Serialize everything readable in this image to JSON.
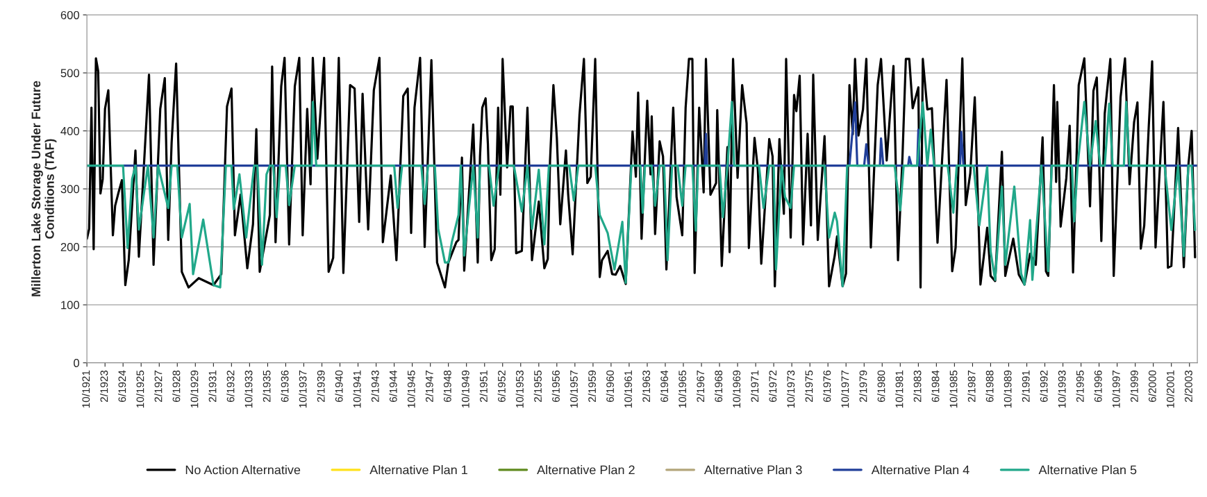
{
  "chart_data": {
    "type": "line",
    "ylabel": "Millerton Lake Storage Under Future\nConditions (TAF)",
    "ylim": [
      0,
      600
    ],
    "yticks": [
      0,
      100,
      200,
      300,
      400,
      500,
      600
    ],
    "grid": "y",
    "legend": "bottom",
    "line_style": "solid",
    "marker": "none",
    "xlim": [
      "1921-10",
      "2003-09"
    ],
    "xticks": [
      {
        "value": "1921-10",
        "label": "10/1921"
      },
      {
        "value": "1923-02",
        "label": "2/1923"
      },
      {
        "value": "1924-06",
        "label": "6/1924"
      },
      {
        "value": "1925-10",
        "label": "10/1925"
      },
      {
        "value": "1927-02",
        "label": "2/1927"
      },
      {
        "value": "1928-06",
        "label": "6/1928"
      },
      {
        "value": "1929-10",
        "label": "10/1929"
      },
      {
        "value": "1931-02",
        "label": "2/1931"
      },
      {
        "value": "1932-06",
        "label": "6/1932"
      },
      {
        "value": "1933-10",
        "label": "10/1933"
      },
      {
        "value": "1935-02",
        "label": "2/1935"
      },
      {
        "value": "1936-06",
        "label": "6/1936"
      },
      {
        "value": "1937-10",
        "label": "10/1937"
      },
      {
        "value": "1939-02",
        "label": "2/1939"
      },
      {
        "value": "1940-06",
        "label": "6/1940"
      },
      {
        "value": "1941-10",
        "label": "10/1941"
      },
      {
        "value": "1943-02",
        "label": "2/1943"
      },
      {
        "value": "1944-06",
        "label": "6/1944"
      },
      {
        "value": "1945-10",
        "label": "10/1945"
      },
      {
        "value": "1947-02",
        "label": "2/1947"
      },
      {
        "value": "1948-06",
        "label": "6/1948"
      },
      {
        "value": "1949-10",
        "label": "10/1949"
      },
      {
        "value": "1951-02",
        "label": "2/1951"
      },
      {
        "value": "1952-06",
        "label": "6/1952"
      },
      {
        "value": "1953-10",
        "label": "10/1953"
      },
      {
        "value": "1955-02",
        "label": "2/1955"
      },
      {
        "value": "1956-06",
        "label": "6/1956"
      },
      {
        "value": "1957-10",
        "label": "10/1957"
      },
      {
        "value": "1959-02",
        "label": "2/1959"
      },
      {
        "value": "1960-06",
        "label": "6/1960"
      },
      {
        "value": "1961-10",
        "label": "10/1961"
      },
      {
        "value": "1963-02",
        "label": "2/1963"
      },
      {
        "value": "1964-06",
        "label": "6/1964"
      },
      {
        "value": "1965-10",
        "label": "10/1965"
      },
      {
        "value": "1967-02",
        "label": "2/1967"
      },
      {
        "value": "1968-06",
        "label": "6/1968"
      },
      {
        "value": "1969-10",
        "label": "10/1969"
      },
      {
        "value": "1971-02",
        "label": "2/1971"
      },
      {
        "value": "1972-06",
        "label": "6/1972"
      },
      {
        "value": "1973-10",
        "label": "10/1973"
      },
      {
        "value": "1975-02",
        "label": "2/1975"
      },
      {
        "value": "1976-06",
        "label": "6/1976"
      },
      {
        "value": "1977-10",
        "label": "10/1977"
      },
      {
        "value": "1979-02",
        "label": "2/1979"
      },
      {
        "value": "1980-06",
        "label": "6/1980"
      },
      {
        "value": "1981-10",
        "label": "10/1981"
      },
      {
        "value": "1983-02",
        "label": "2/1983"
      },
      {
        "value": "1984-06",
        "label": "6/1984"
      },
      {
        "value": "1985-10",
        "label": "10/1985"
      },
      {
        "value": "1987-02",
        "label": "2/1987"
      },
      {
        "value": "1988-06",
        "label": "6/1988"
      },
      {
        "value": "1989-10",
        "label": "10/1989"
      },
      {
        "value": "1991-02",
        "label": "2/1991"
      },
      {
        "value": "1992-06",
        "label": "6/1992"
      },
      {
        "value": "1993-10",
        "label": "10/1993"
      },
      {
        "value": "1995-02",
        "label": "2/1995"
      },
      {
        "value": "1996-06",
        "label": "6/1996"
      },
      {
        "value": "1997-10",
        "label": "10/1997"
      },
      {
        "value": "1999-02",
        "label": "2/1999"
      },
      {
        "value": "2000-06",
        "label": "6/2000"
      },
      {
        "value": "2001-10",
        "label": "10/2001"
      },
      {
        "value": "2003-02",
        "label": "2/2003"
      }
    ],
    "series": [
      {
        "name": "No Action Alternative",
        "color": "#000000",
        "x": [
          "1921-10",
          "1921-12",
          "1922-02",
          "1922-04",
          "1922-06",
          "1922-08",
          "1922-10",
          "1922-12",
          "1923-02",
          "1923-05",
          "1923-09",
          "1923-11",
          "1924-02",
          "1924-05",
          "1924-08",
          "1924-11",
          "1925-05",
          "1925-08",
          "1926-05",
          "1926-09",
          "1927-03",
          "1927-07",
          "1927-10",
          "1928-01",
          "1928-05",
          "1928-10",
          "1929-04",
          "1930-01",
          "1931-02",
          "1931-09",
          "1932-02",
          "1932-06",
          "1932-09",
          "1933-02",
          "1933-08",
          "1934-01",
          "1934-04",
          "1934-07",
          "1935-04",
          "1935-06",
          "1935-09",
          "1936-02",
          "1936-05",
          "1936-09",
          "1937-02",
          "1937-06",
          "1937-09",
          "1938-01",
          "1938-04",
          "1938-06",
          "1938-10",
          "1939-04",
          "1939-08",
          "1939-12",
          "1940-05",
          "1940-09",
          "1941-03",
          "1941-07",
          "1941-11",
          "1942-02",
          "1942-07",
          "1942-12",
          "1943-05",
          "1943-08",
          "1944-03",
          "1944-08",
          "1945-02",
          "1945-06",
          "1945-09",
          "1945-12",
          "1946-05",
          "1946-09",
          "1947-03",
          "1947-08",
          "1948-03",
          "1948-06",
          "1949-01",
          "1949-03",
          "1949-06",
          "1949-08",
          "1950-04",
          "1950-08",
          "1950-10",
          "1950-12",
          "1951-03",
          "1951-05",
          "1951-08",
          "1951-11",
          "1952-02",
          "1952-04",
          "1952-06",
          "1952-10",
          "1953-01",
          "1953-03",
          "1953-06",
          "1953-11",
          "1954-04",
          "1954-08",
          "1955-02",
          "1955-07",
          "1955-10",
          "1955-12",
          "1956-03",
          "1956-06",
          "1956-09",
          "1957-02",
          "1957-04",
          "1957-08",
          "1958-02",
          "1958-06",
          "1958-09",
          "1958-12",
          "1959-04",
          "1959-08",
          "1959-10",
          "1960-03",
          "1960-07",
          "1960-10",
          "1961-02",
          "1961-07",
          "1962-01",
          "1962-04",
          "1962-06",
          "1962-09",
          "1963-02",
          "1963-05",
          "1963-06",
          "1963-09",
          "1964-01",
          "1964-04",
          "1964-07",
          "1965-01",
          "1965-04",
          "1965-09",
          "1965-12",
          "1966-03",
          "1966-06",
          "1966-08",
          "1966-12",
          "1967-04",
          "1967-06",
          "1967-10",
          "1968-03",
          "1968-04",
          "1968-08",
          "1969-01",
          "1969-03",
          "1969-06",
          "1969-10",
          "1970-02",
          "1970-06",
          "1970-08",
          "1971-01",
          "1971-04",
          "1971-07",
          "1972-02",
          "1972-05",
          "1972-07",
          "1972-11",
          "1973-03",
          "1973-05",
          "1973-09",
          "1973-12",
          "1974-02",
          "1974-05",
          "1974-08",
          "1974-12",
          "1975-03",
          "1975-05",
          "1975-09",
          "1976-03",
          "1976-07",
          "1976-12",
          "1977-02",
          "1977-07",
          "1977-10",
          "1978-01",
          "1978-04",
          "1978-06",
          "1978-09",
          "1979-01",
          "1979-04",
          "1979-08",
          "1980-02",
          "1980-05",
          "1980-10",
          "1981-04",
          "1981-08",
          "1981-12",
          "1982-03",
          "1982-06",
          "1982-09",
          "1983-02",
          "1983-04",
          "1983-06",
          "1983-10",
          "1984-02",
          "1984-07",
          "1985-03",
          "1985-08",
          "1985-11",
          "1986-05",
          "1986-08",
          "1986-12",
          "1987-04",
          "1987-09",
          "1988-03",
          "1988-06",
          "1988-10",
          "1989-04",
          "1989-07",
          "1990-02",
          "1990-07",
          "1990-12",
          "1991-05",
          "1991-10",
          "1992-04",
          "1992-07",
          "1992-09",
          "1993-02",
          "1993-04",
          "1993-05",
          "1993-08",
          "1994-01",
          "1994-04",
          "1994-07",
          "1994-12",
          "1995-05",
          "1995-10",
          "1996-01",
          "1996-04",
          "1996-08",
          "1996-11",
          "1997-04",
          "1997-07",
          "1998-01",
          "1998-05",
          "1998-09",
          "1999-01",
          "1999-04",
          "1999-07",
          "1999-10",
          "2000-02",
          "2000-05",
          "2000-08",
          "2001-03",
          "2001-07",
          "2001-10",
          "2002-04",
          "2002-09",
          "2003-01",
          "2003-04",
          "2003-07"
        ],
        "values": [
          214,
          231,
          440,
          196,
          525,
          503,
          292,
          317,
          438,
          470,
          220,
          271,
          294,
          315,
          134,
          177,
          366,
          183,
          497,
          169,
          438,
          491,
          212,
          380,
          516,
          157,
          130,
          146,
          134,
          153,
          442,
          473,
          220,
          290,
          163,
          239,
          403,
          157,
          255,
          511,
          208,
          477,
          526,
          204,
          477,
          526,
          220,
          438,
          308,
          526,
          352,
          526,
          157,
          181,
          526,
          155,
          479,
          473,
          243,
          464,
          230,
          470,
          526,
          208,
          323,
          177,
          460,
          473,
          224,
          440,
          526,
          200,
          522,
          173,
          130,
          173,
          208,
          212,
          354,
          159,
          411,
          173,
          356,
          440,
          456,
          378,
          177,
          196,
          440,
          290,
          524,
          337,
          442,
          442,
          189,
          193,
          440,
          177,
          278,
          163,
          179,
          349,
          479,
          388,
          239,
          366,
          292,
          187,
          427,
          524,
          310,
          321,
          524,
          148,
          177,
          193,
          153,
          152,
          167,
          136,
          399,
          321,
          466,
          214,
          452,
          325,
          425,
          222,
          382,
          356,
          161,
          440,
          286,
          220,
          440,
          524,
          524,
          155,
          440,
          294,
          524,
          290,
          310,
          436,
          167,
          372,
          191,
          524,
          319,
          479,
          413,
          198,
          388,
          333,
          171,
          386,
          356,
          132,
          386,
          257,
          524,
          216,
          462,
          434,
          495,
          204,
          395,
          237,
          497,
          212,
          391,
          132,
          185,
          218,
          132,
          154,
          479,
          394,
          524,
          392,
          437,
          524,
          199,
          479,
          524,
          349,
          512,
          177,
          357,
          524,
          524,
          439,
          475,
          130,
          524,
          437,
          439,
          207,
          488,
          158,
          199,
          525,
          272,
          327,
          458,
          135,
          233,
          150,
          141,
          364,
          150,
          214,
          152,
          135,
          188,
          169,
          389,
          158,
          150,
          479,
          312,
          450,
          235,
          319,
          409,
          156,
          479,
          525,
          270,
          469,
          492,
          210,
          430,
          524,
          150,
          458,
          525,
          308,
          415,
          449,
          197,
          237,
          409,
          520,
          199,
          450,
          164,
          167,
          405,
          165,
          340,
          400,
          182
        ]
      },
      {
        "name": "Alternative Plan 1",
        "color": "#ffe11a"
      },
      {
        "name": "Alternative Plan 2",
        "color": "#5f8a1e"
      },
      {
        "name": "Alternative Plan 3",
        "color": "#b3a57a"
      },
      {
        "name": "Alternative Plan 4",
        "color": "#213f99",
        "x": [
          "1921-10",
          "1967-05",
          "1967-06",
          "1967-07",
          "1978-01",
          "1978-06",
          "1978-08",
          "1979-02",
          "1979-04",
          "1979-06",
          "1980-04",
          "1980-05",
          "1980-07",
          "1982-05",
          "1982-06",
          "1982-08",
          "1983-01",
          "1983-02",
          "1983-03",
          "1986-03",
          "1986-04",
          "1986-06",
          "2003-09"
        ],
        "values": [
          340,
          340,
          395,
          340,
          340,
          449,
          340,
          340,
          377,
          340,
          340,
          387,
          340,
          340,
          355,
          340,
          340,
          402,
          340,
          340,
          398,
          340,
          340
        ]
      },
      {
        "name": "Alternative Plan 5",
        "color": "#21a88a",
        "x": [
          "1921-10",
          "1924-06",
          "1924-10",
          "1925-02",
          "1925-05",
          "1925-08",
          "1926-04",
          "1926-09",
          "1927-01",
          "1927-10",
          "1928-01",
          "1928-06",
          "1928-10",
          "1929-05",
          "1929-08",
          "1930-05",
          "1931-02",
          "1931-08",
          "1932-01",
          "1932-06",
          "1932-08",
          "1933-01",
          "1933-07",
          "1934-02",
          "1934-05",
          "1934-09",
          "1935-01",
          "1935-04",
          "1935-07",
          "1935-10",
          "1936-01",
          "1936-06",
          "1936-09",
          "1937-02",
          "1938-05",
          "1938-06",
          "1938-09",
          "1944-06",
          "1944-09",
          "1945-01",
          "1946-06",
          "1946-09",
          "1946-12",
          "1947-06",
          "1947-09",
          "1948-03",
          "1948-06",
          "1948-09",
          "1949-03",
          "1949-05",
          "1949-08",
          "1950-04",
          "1950-08",
          "1950-10",
          "1951-06",
          "1951-10",
          "1952-03",
          "1953-04",
          "1953-11",
          "1954-04",
          "1954-08",
          "1955-02",
          "1955-07",
          "1955-11",
          "1957-05",
          "1957-09",
          "1958-01",
          "1959-04",
          "1959-08",
          "1960-03",
          "1960-09",
          "1961-04",
          "1961-07",
          "1961-12",
          "1962-08",
          "1962-10",
          "1962-12",
          "1963-06",
          "1963-09",
          "1964-01",
          "1964-05",
          "1964-08",
          "1964-12",
          "1965-05",
          "1965-09",
          "1965-12",
          "1966-06",
          "1966-09",
          "1966-11",
          "1968-06",
          "1968-09",
          "1969-01",
          "1969-05",
          "1969-07",
          "1971-05",
          "1971-09",
          "1972-02",
          "1972-06",
          "1972-08",
          "1973-01",
          "1973-04",
          "1973-09",
          "1973-12",
          "1976-03",
          "1976-07",
          "1976-12",
          "1977-02",
          "1977-07",
          "1977-11",
          "1981-05",
          "1981-10",
          "1982-01",
          "1983-01",
          "1983-06",
          "1983-10",
          "1984-01",
          "1984-04",
          "1985-04",
          "1985-09",
          "1985-12",
          "1987-03",
          "1987-08",
          "1988-03",
          "1988-06",
          "1988-10",
          "1989-04",
          "1989-07",
          "1990-03",
          "1990-09",
          "1990-12",
          "1991-05",
          "1991-07",
          "1992-03",
          "1992-09",
          "1992-12",
          "1994-06",
          "1994-08",
          "1994-11",
          "1995-05",
          "1995-10",
          "1996-03",
          "1996-07",
          "1996-11",
          "1997-03",
          "1997-06",
          "1998-04",
          "1998-06",
          "1998-09",
          "2001-04",
          "2001-10",
          "2002-04",
          "2002-09",
          "2003-01",
          "2003-04",
          "2003-07"
        ],
        "values": [
          340,
          340,
          198,
          317,
          340,
          230,
          340,
          216,
          340,
          267,
          340,
          340,
          216,
          274,
          153,
          247,
          134,
          130,
          340,
          340,
          265,
          325,
          216,
          340,
          340,
          169,
          325,
          340,
          340,
          251,
          340,
          340,
          272,
          340,
          340,
          450,
          340,
          340,
          267,
          340,
          340,
          274,
          340,
          340,
          231,
          173,
          173,
          208,
          255,
          340,
          185,
          340,
          216,
          340,
          340,
          271,
          340,
          340,
          261,
          340,
          231,
          333,
          204,
          340,
          340,
          280,
          340,
          340,
          255,
          224,
          161,
          243,
          138,
          340,
          340,
          259,
          340,
          340,
          271,
          340,
          340,
          177,
          340,
          340,
          271,
          340,
          340,
          228,
          340,
          340,
          251,
          340,
          450,
          340,
          340,
          267,
          340,
          340,
          161,
          340,
          286,
          267,
          340,
          340,
          216,
          259,
          244,
          132,
          340,
          340,
          263,
          340,
          340,
          449,
          340,
          402,
          340,
          340,
          259,
          340,
          340,
          237,
          338,
          192,
          143,
          304,
          169,
          304,
          154,
          135,
          246,
          143,
          340,
          158,
          340,
          340,
          244,
          340,
          450,
          340,
          417,
          340,
          340,
          447,
          340,
          340,
          450,
          340,
          340,
          229,
          340,
          184,
          340,
          340,
          229
        ]
      }
    ]
  }
}
